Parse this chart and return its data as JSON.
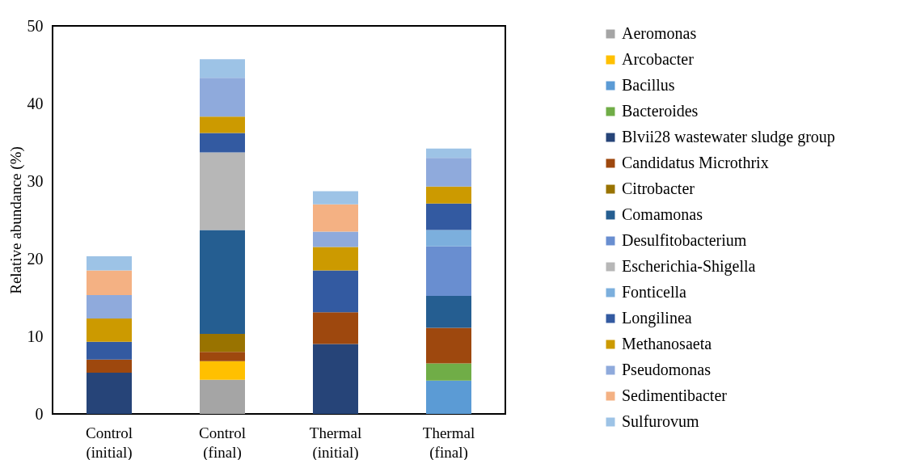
{
  "chart_data": {
    "type": "bar",
    "stacked": true,
    "ylabel": "Relative abundance (%)",
    "categories": [
      "Control (initial)",
      "Control (final)",
      "Thermal (initial)",
      "Thermal (final)"
    ],
    "ylim": [
      0,
      50
    ],
    "yticks": [
      0,
      10,
      20,
      30,
      40,
      50
    ],
    "grid": false,
    "legend": "right",
    "series": [
      {
        "name": "Aeromonas",
        "color": "#a5a5a5",
        "values": [
          null,
          4.4,
          null,
          null
        ]
      },
      {
        "name": "Arcobacter",
        "color": "#ffc000",
        "values": [
          null,
          2.4,
          null,
          null
        ]
      },
      {
        "name": "Bacillus",
        "color": "#5b9bd5",
        "values": [
          null,
          null,
          null,
          4.3
        ]
      },
      {
        "name": "Bacteroides",
        "color": "#70ad47",
        "values": [
          null,
          null,
          null,
          2.2
        ]
      },
      {
        "name": "Blvii28 wastewater sludge group",
        "color": "#264478",
        "values": [
          5.3,
          null,
          9.0,
          null
        ]
      },
      {
        "name": "Candidatus Microthrix",
        "color": "#9e480e",
        "values": [
          1.7,
          1.2,
          4.1,
          4.6
        ]
      },
      {
        "name": "Citrobacter",
        "color": "#997300",
        "values": [
          null,
          2.3,
          null,
          null
        ]
      },
      {
        "name": "Comamonas",
        "color": "#255e91",
        "values": [
          null,
          13.4,
          null,
          4.1
        ]
      },
      {
        "name": "Desulfitobacterium",
        "color": "#698ed0",
        "values": [
          null,
          null,
          null,
          6.4
        ]
      },
      {
        "name": "Escherichia-Shigella",
        "color": "#b7b7b7",
        "values": [
          null,
          10.0,
          null,
          null
        ]
      },
      {
        "name": "Fonticella",
        "color": "#7cafdd",
        "values": [
          null,
          null,
          null,
          2.1
        ]
      },
      {
        "name": "Longilinea",
        "color": "#335aa1",
        "values": [
          2.3,
          2.5,
          5.4,
          3.4
        ]
      },
      {
        "name": "Methanosaeta",
        "color": "#cc9a00",
        "values": [
          3.0,
          2.1,
          3.0,
          2.2
        ]
      },
      {
        "name": "Pseudomonas",
        "color": "#8faadc",
        "values": [
          3.0,
          5.0,
          2.0,
          3.7
        ]
      },
      {
        "name": "Sedimentibacter",
        "color": "#f4b183",
        "values": [
          3.2,
          null,
          3.5,
          null
        ]
      },
      {
        "name": "Sulfurovum",
        "color": "#9dc3e6",
        "values": [
          1.8,
          2.4,
          1.7,
          1.2
        ]
      }
    ]
  }
}
